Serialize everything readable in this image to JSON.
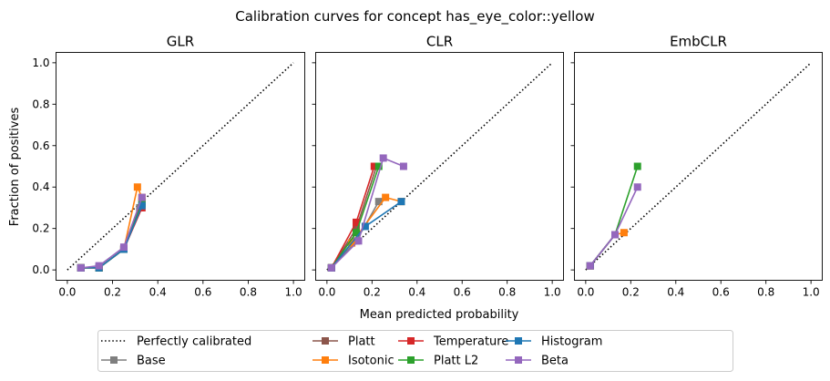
{
  "figure": {
    "title": "Calibration curves for concept has_eye_color::yellow",
    "xlabel": "Mean predicted probability",
    "ylabel": "Fraction of positives"
  },
  "legend": {
    "placement": "bottom-center",
    "entries": [
      {
        "name": "Perfectly calibrated",
        "color": "#000000",
        "style": "dotted",
        "marker": "none"
      },
      {
        "name": "Base",
        "color": "#7f7f7f",
        "style": "solid",
        "marker": "square"
      },
      {
        "name": "Platt",
        "color": "#8c564b",
        "style": "solid",
        "marker": "square"
      },
      {
        "name": "Isotonic",
        "color": "#ff7f0e",
        "style": "solid",
        "marker": "square"
      },
      {
        "name": "Temperature",
        "color": "#d62728",
        "style": "solid",
        "marker": "square"
      },
      {
        "name": "Platt L2",
        "color": "#2ca02c",
        "style": "solid",
        "marker": "square"
      },
      {
        "name": "Histogram",
        "color": "#1f77b4",
        "style": "solid",
        "marker": "square"
      },
      {
        "name": "Beta",
        "color": "#9467bd",
        "style": "solid",
        "marker": "square"
      }
    ]
  },
  "chart_data": [
    {
      "type": "line",
      "title": "GLR",
      "xlim": [
        -0.05,
        1.05
      ],
      "ylim": [
        -0.05,
        1.05
      ],
      "xticks": [
        "0.0",
        "0.2",
        "0.4",
        "0.6",
        "0.8",
        "1.0"
      ],
      "yticks": [
        "0.0",
        "0.2",
        "0.4",
        "0.6",
        "0.8",
        "1.0"
      ],
      "grid": false,
      "show_yticklabels": true,
      "reference": {
        "name": "Perfectly calibrated",
        "x": [
          0,
          1
        ],
        "y": [
          0,
          1
        ]
      },
      "series": [
        {
          "name": "Base",
          "color": "#7f7f7f",
          "x": [
            0.06,
            0.14,
            0.25,
            0.32
          ],
          "y": [
            0.01,
            0.01,
            0.1,
            0.3
          ]
        },
        {
          "name": "Platt",
          "color": "#8c564b",
          "x": [
            0.06,
            0.14,
            0.25,
            0.33
          ],
          "y": [
            0.01,
            0.01,
            0.1,
            0.33
          ]
        },
        {
          "name": "Isotonic",
          "color": "#ff7f0e",
          "x": [
            0.06,
            0.14,
            0.25,
            0.31,
            0.33
          ],
          "y": [
            0.01,
            0.01,
            0.1,
            0.4,
            0.35
          ]
        },
        {
          "name": "Temperature",
          "color": "#d62728",
          "x": [
            0.06,
            0.14,
            0.25,
            0.33
          ],
          "y": [
            0.01,
            0.01,
            0.1,
            0.3
          ]
        },
        {
          "name": "Platt L2",
          "color": "#2ca02c",
          "x": [
            0.06,
            0.14,
            0.25,
            0.33
          ],
          "y": [
            0.01,
            0.01,
            0.1,
            0.32
          ]
        },
        {
          "name": "Histogram",
          "color": "#1f77b4",
          "x": [
            0.06,
            0.14,
            0.25,
            0.33
          ],
          "y": [
            0.01,
            0.01,
            0.1,
            0.31
          ]
        },
        {
          "name": "Beta",
          "color": "#9467bd",
          "x": [
            0.06,
            0.14,
            0.25,
            0.33
          ],
          "y": [
            0.01,
            0.02,
            0.11,
            0.35
          ]
        }
      ]
    },
    {
      "type": "line",
      "title": "CLR",
      "xlim": [
        -0.05,
        1.05
      ],
      "ylim": [
        -0.05,
        1.05
      ],
      "xticks": [
        "0.0",
        "0.2",
        "0.4",
        "0.6",
        "0.8",
        "1.0"
      ],
      "yticks": [
        "0.0",
        "0.2",
        "0.4",
        "0.6",
        "0.8",
        "1.0"
      ],
      "grid": false,
      "show_yticklabels": false,
      "reference": {
        "name": "Perfectly calibrated",
        "x": [
          0,
          1
        ],
        "y": [
          0,
          1
        ]
      },
      "series": [
        {
          "name": "Base",
          "color": "#7f7f7f",
          "x": [
            0.02,
            0.13,
            0.23
          ],
          "y": [
            0.01,
            0.14,
            0.33
          ]
        },
        {
          "name": "Platt",
          "color": "#8c564b",
          "x": [
            0.02,
            0.13,
            0.22
          ],
          "y": [
            0.01,
            0.2,
            0.5
          ]
        },
        {
          "name": "Isotonic",
          "color": "#ff7f0e",
          "x": [
            0.02,
            0.11,
            0.26,
            0.33
          ],
          "y": [
            0.01,
            0.13,
            0.35,
            0.33
          ]
        },
        {
          "name": "Temperature",
          "color": "#d62728",
          "x": [
            0.02,
            0.13,
            0.21
          ],
          "y": [
            0.01,
            0.23,
            0.5
          ]
        },
        {
          "name": "Platt L2",
          "color": "#2ca02c",
          "x": [
            0.02,
            0.13,
            0.23
          ],
          "y": [
            0.01,
            0.18,
            0.5
          ]
        },
        {
          "name": "Histogram",
          "color": "#1f77b4",
          "x": [
            0.02,
            0.17,
            0.33
          ],
          "y": [
            0.01,
            0.21,
            0.33
          ]
        },
        {
          "name": "Beta",
          "color": "#9467bd",
          "x": [
            0.02,
            0.14,
            0.25,
            0.34
          ],
          "y": [
            0.01,
            0.14,
            0.54,
            0.5
          ]
        }
      ]
    },
    {
      "type": "line",
      "title": "EmbCLR",
      "xlim": [
        -0.05,
        1.05
      ],
      "ylim": [
        -0.05,
        1.05
      ],
      "xticks": [
        "0.0",
        "0.2",
        "0.4",
        "0.6",
        "0.8",
        "1.0"
      ],
      "yticks": [
        "0.0",
        "0.2",
        "0.4",
        "0.6",
        "0.8",
        "1.0"
      ],
      "grid": false,
      "show_yticklabels": false,
      "reference": {
        "name": "Perfectly calibrated",
        "x": [
          0,
          1
        ],
        "y": [
          0,
          1
        ]
      },
      "series": [
        {
          "name": "Base",
          "color": "#7f7f7f",
          "x": [
            0.02,
            0.13
          ],
          "y": [
            0.02,
            0.17
          ]
        },
        {
          "name": "Platt",
          "color": "#8c564b",
          "x": [
            0.02,
            0.13
          ],
          "y": [
            0.02,
            0.17
          ]
        },
        {
          "name": "Isotonic",
          "color": "#ff7f0e",
          "x": [
            0.02,
            0.13,
            0.17
          ],
          "y": [
            0.02,
            0.17,
            0.18
          ]
        },
        {
          "name": "Temperature",
          "color": "#d62728",
          "x": [
            0.02,
            0.13
          ],
          "y": [
            0.02,
            0.17
          ]
        },
        {
          "name": "Platt L2",
          "color": "#2ca02c",
          "x": [
            0.02,
            0.13,
            0.23
          ],
          "y": [
            0.02,
            0.17,
            0.5
          ]
        },
        {
          "name": "Histogram",
          "color": "#1f77b4",
          "x": [
            0.02,
            0.13
          ],
          "y": [
            0.02,
            0.17
          ]
        },
        {
          "name": "Beta",
          "color": "#9467bd",
          "x": [
            0.02,
            0.13,
            0.23
          ],
          "y": [
            0.02,
            0.17,
            0.4
          ]
        }
      ]
    }
  ]
}
